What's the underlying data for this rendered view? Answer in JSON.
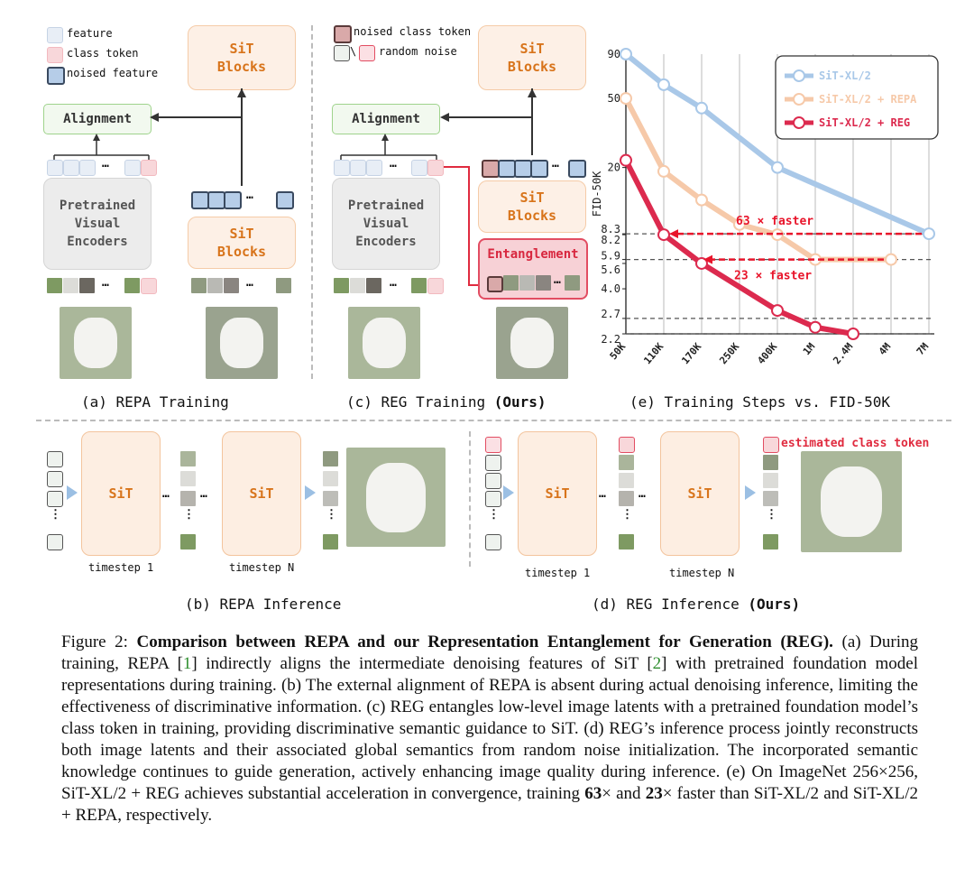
{
  "legend_a": {
    "feature": "feature",
    "class_token": "class token",
    "noised_feature": "noised feature"
  },
  "legend_c": {
    "noised_class_token": "noised class token",
    "random_noise": "random noise"
  },
  "blocks": {
    "sit_blocks": "SiT\nBlocks",
    "alignment": "Alignment",
    "pretrained": "Pretrained\nVisual\nEncoders",
    "entanglement": "Entanglement",
    "sit": "SiT",
    "ellipsis": "…",
    "vdots": "⋮"
  },
  "captions": {
    "a": "(a) REPA Training",
    "b": "(b) REPA Inference",
    "c_prefix": "(c) REG Training ",
    "c_bold": "(Ours)",
    "d_prefix": "(d) REG Inference ",
    "d_bold": "(Ours)",
    "e": "(e) Training Steps vs. FID-50K",
    "timestep1": "timestep 1",
    "timestepN": "timestep N",
    "estimated": "estimated class token"
  },
  "chart_data": {
    "type": "line",
    "ylabel": "FID-50K",
    "xlabel": "",
    "x_tick_labels": [
      "50K",
      "110K",
      "170K",
      "250K",
      "400K",
      "1M",
      "2.4M",
      "4M",
      "7M"
    ],
    "y_tick_labels": [
      "90",
      "50",
      "20",
      "8.3",
      "8.2",
      "5.9",
      "5.6",
      "4.0",
      "2.7",
      "2.2"
    ],
    "y_scale": "log",
    "legend_position": "top-right",
    "series": [
      {
        "name": "SiT-XL/2",
        "color": "#a9c8e8",
        "x": [
          "50K",
          "110K",
          "170K",
          "400K",
          "7M"
        ],
        "y": [
          90,
          60,
          44,
          20,
          8.3
        ]
      },
      {
        "name": "SiT-XL/2 + REPA",
        "color": "#f6c9a9",
        "x": [
          "50K",
          "110K",
          "170K",
          "250K",
          "400K",
          "1M",
          "4M"
        ],
        "y": [
          50,
          19,
          13,
          9.4,
          8.2,
          5.9,
          5.9
        ]
      },
      {
        "name": "SiT-XL/2 + REG",
        "color": "#dc2a4e",
        "x": [
          "50K",
          "110K",
          "170K",
          "400K",
          "1M",
          "2.4M"
        ],
        "y": [
          22,
          8.2,
          5.6,
          3.0,
          2.4,
          2.2
        ]
      }
    ],
    "annotations": [
      "63 × faster",
      "23 × faster"
    ]
  },
  "caption": {
    "fig": "Figure 2: ",
    "title": "Comparison between REPA and our Representation Entanglement for Generation (REG).",
    "s1a": " (a) During training, REPA [",
    "ref1": "1",
    "s1b": "] indirectly aligns the intermediate denoising features of SiT [",
    "ref2": "2",
    "s1c": "] with pretrained foundation model representations during training. (b) The external alignment of REPA is absent during actual denoising inference, limiting the effectiveness of discriminative information. (c) REG entangles low-level image latents with a pretrained foundation model’s class token in training, providing discriminative semantic guidance to SiT. (d) REG’s inference process jointly reconstructs both image latents and their associated global semantics from random noise initialization. The incorporated semantic knowledge continues to guide generation, actively enhancing image quality during inference. (e) On ImageNet 256×256, SiT-XL/2 + REG achieves substantial acceleration in convergence, training ",
    "b63": "63",
    "s2": "× and ",
    "b23": "23",
    "s3": "× faster than SiT-XL/2 and SiT-XL/2 + REPA, respectively."
  }
}
